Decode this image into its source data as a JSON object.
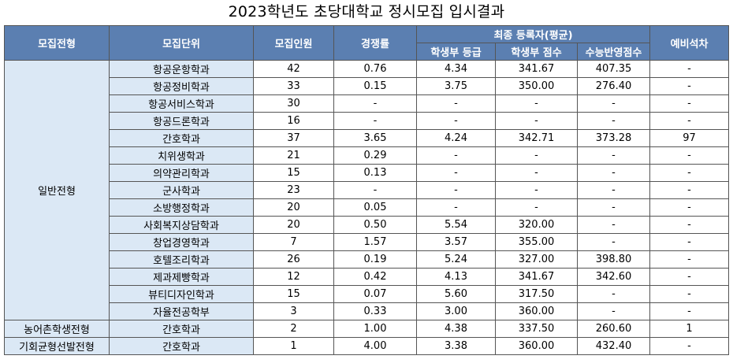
{
  "title": "2023학년도 초당대학교 정시모집 입시결과",
  "headers": {
    "track": "모집전형",
    "unit": "모집단위",
    "quota": "모집인원",
    "ratio": "경쟁률",
    "final_group": "최종 등록자(평균)",
    "grade": "학생부 등급",
    "record_score": "학생부 점수",
    "suneung_score": "수능반영점수",
    "waitlist": "예비석차"
  },
  "groups": [
    {
      "track": "일반전형",
      "rows": [
        {
          "unit": "항공운항학과",
          "quota": "42",
          "ratio": "0.76",
          "grade": "4.34",
          "record": "341.67",
          "suneung": "407.35",
          "waitlist": "-"
        },
        {
          "unit": "항공정비학과",
          "quota": "33",
          "ratio": "0.15",
          "grade": "3.75",
          "record": "350.00",
          "suneung": "276.40",
          "waitlist": "-"
        },
        {
          "unit": "항공서비스학과",
          "quota": "30",
          "ratio": "-",
          "grade": "-",
          "record": "-",
          "suneung": "-",
          "waitlist": "-"
        },
        {
          "unit": "항공드론학과",
          "quota": "16",
          "ratio": "-",
          "grade": "-",
          "record": "-",
          "suneung": "-",
          "waitlist": "-"
        },
        {
          "unit": "간호학과",
          "quota": "37",
          "ratio": "3.65",
          "grade": "4.24",
          "record": "342.71",
          "suneung": "373.28",
          "waitlist": "97"
        },
        {
          "unit": "치위생학과",
          "quota": "21",
          "ratio": "0.29",
          "grade": "-",
          "record": "-",
          "suneung": "-",
          "waitlist": "-"
        },
        {
          "unit": "의약관리학과",
          "quota": "15",
          "ratio": "0.13",
          "grade": "-",
          "record": "-",
          "suneung": "-",
          "waitlist": "-"
        },
        {
          "unit": "군사학과",
          "quota": "23",
          "ratio": "-",
          "grade": "-",
          "record": "-",
          "suneung": "-",
          "waitlist": "-"
        },
        {
          "unit": "소방행정학과",
          "quota": "20",
          "ratio": "0.05",
          "grade": "-",
          "record": "-",
          "suneung": "-",
          "waitlist": "-"
        },
        {
          "unit": "사회복지상담학과",
          "quota": "20",
          "ratio": "0.50",
          "grade": "5.54",
          "record": "320.00",
          "suneung": "-",
          "waitlist": "-"
        },
        {
          "unit": "창업경영학과",
          "quota": "7",
          "ratio": "1.57",
          "grade": "3.57",
          "record": "355.00",
          "suneung": "-",
          "waitlist": "-"
        },
        {
          "unit": "호텔조리학과",
          "quota": "26",
          "ratio": "0.19",
          "grade": "5.24",
          "record": "327.00",
          "suneung": "398.80",
          "waitlist": "-"
        },
        {
          "unit": "제과제빵학과",
          "quota": "12",
          "ratio": "0.42",
          "grade": "4.13",
          "record": "341.67",
          "suneung": "342.60",
          "waitlist": "-"
        },
        {
          "unit": "뷰티디자인학과",
          "quota": "15",
          "ratio": "0.07",
          "grade": "5.60",
          "record": "317.50",
          "suneung": "-",
          "waitlist": "-"
        },
        {
          "unit": "자율전공학부",
          "quota": "3",
          "ratio": "0.33",
          "grade": "3.00",
          "record": "360.00",
          "suneung": "-",
          "waitlist": "-"
        }
      ]
    },
    {
      "track": "농어촌학생전형",
      "rows": [
        {
          "unit": "간호학과",
          "quota": "2",
          "ratio": "1.00",
          "grade": "4.38",
          "record": "337.50",
          "suneung": "260.60",
          "waitlist": "1"
        }
      ]
    },
    {
      "track": "기회균형선발전형",
      "rows": [
        {
          "unit": "간호학과",
          "quota": "1",
          "ratio": "4.00",
          "grade": "3.38",
          "record": "360.00",
          "suneung": "432.40",
          "waitlist": "-"
        }
      ]
    }
  ]
}
